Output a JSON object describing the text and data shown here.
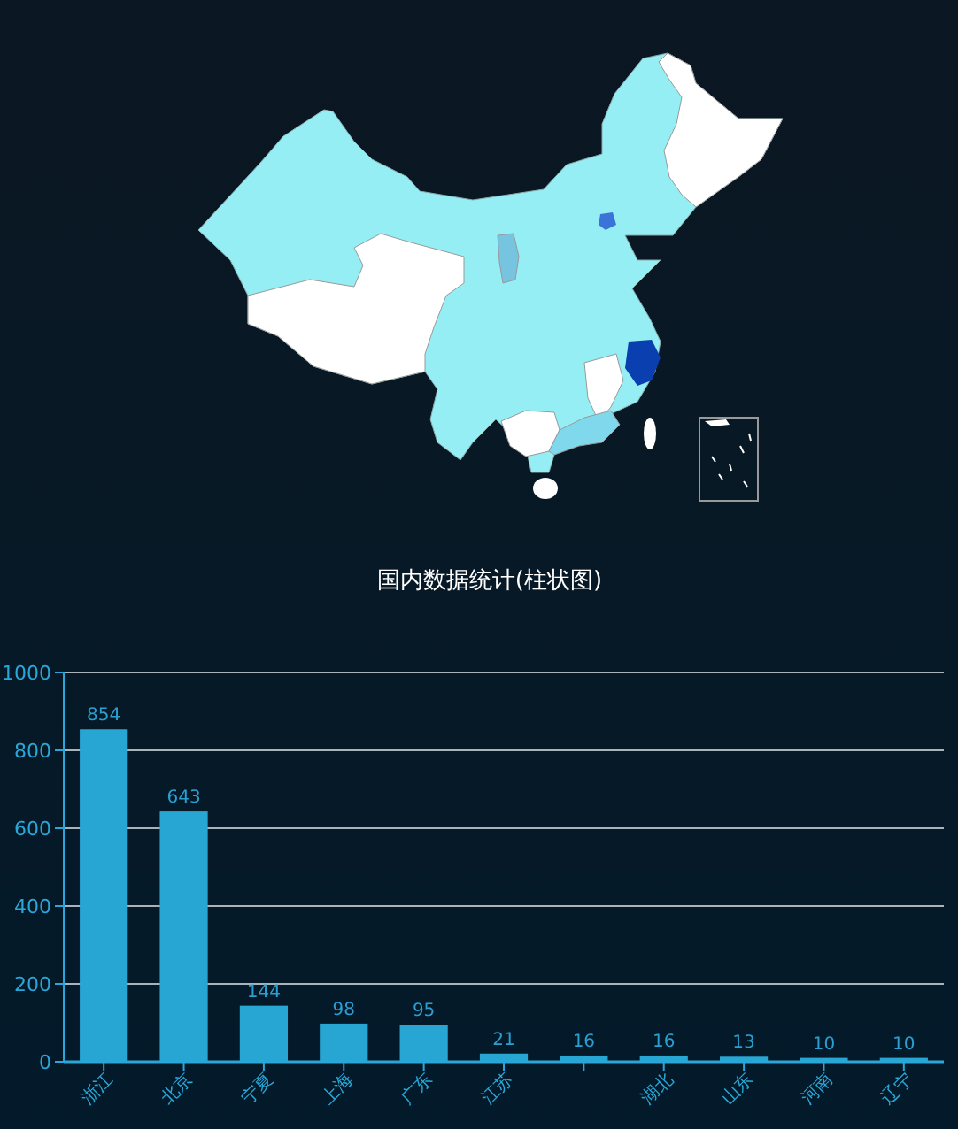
{
  "chart_data": {
    "type": "bar",
    "title": "国内数据统计(柱状图)",
    "categories": [
      "浙江",
      "北京",
      "宁夏",
      "上海",
      "广东",
      "江苏",
      null,
      "湖北",
      "山东",
      "河南",
      "辽宁"
    ],
    "values": [
      854,
      643,
      144,
      98,
      95,
      21,
      16,
      16,
      13,
      10,
      10
    ],
    "color": "#27a5d3",
    "ylim": [
      0,
      1000
    ],
    "yticks": [
      0,
      200,
      400,
      600,
      800,
      1000
    ],
    "grid": "y",
    "data_labels": true
  }
}
